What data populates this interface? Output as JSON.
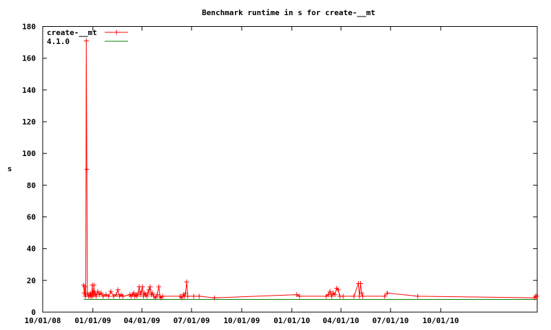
{
  "chart_data": {
    "type": "line",
    "title": "Benchmark runtime in s for create-__mt",
    "xlabel": "",
    "ylabel": "s",
    "xlim": [
      "2008-10-01",
      "2011-03-27"
    ],
    "ylim": [
      0,
      180
    ],
    "y_ticks": [
      0,
      20,
      40,
      60,
      80,
      100,
      120,
      140,
      160,
      180
    ],
    "x_ticks": [
      {
        "date": "2008-10-01",
        "label": "10/01/08"
      },
      {
        "date": "2009-01-01",
        "label": "01/01/09"
      },
      {
        "date": "2009-04-01",
        "label": "04/01/09"
      },
      {
        "date": "2009-07-01",
        "label": "07/01/09"
      },
      {
        "date": "2009-10-01",
        "label": "10/01/09"
      },
      {
        "date": "2010-01-01",
        "label": "01/01/10"
      },
      {
        "date": "2010-04-01",
        "label": "04/01/10"
      },
      {
        "date": "2010-07-01",
        "label": "07/01/10"
      },
      {
        "date": "2010-10-01",
        "label": "10/01/10"
      }
    ],
    "grid": false,
    "legend_position": "top-left",
    "series": [
      {
        "name": "create-__mt",
        "color": "#ff0000",
        "marker": "plus",
        "points": [
          {
            "x": "2008-12-15",
            "y": 17
          },
          {
            "x": "2008-12-16",
            "y": 12
          },
          {
            "x": "2008-12-17",
            "y": 16
          },
          {
            "x": "2008-12-18",
            "y": 10
          },
          {
            "x": "2008-12-19",
            "y": 11
          },
          {
            "x": "2008-12-20",
            "y": 171
          },
          {
            "x": "2008-12-21",
            "y": 90
          },
          {
            "x": "2008-12-22",
            "y": 12
          },
          {
            "x": "2008-12-24",
            "y": 10
          },
          {
            "x": "2008-12-26",
            "y": 11
          },
          {
            "x": "2008-12-27",
            "y": 10
          },
          {
            "x": "2008-12-28",
            "y": 12
          },
          {
            "x": "2008-12-29",
            "y": 10
          },
          {
            "x": "2008-12-30",
            "y": 11
          },
          {
            "x": "2008-12-31",
            "y": 17
          },
          {
            "x": "2009-01-01",
            "y": 10
          },
          {
            "x": "2009-01-02",
            "y": 12
          },
          {
            "x": "2009-01-03",
            "y": 17
          },
          {
            "x": "2009-01-04",
            "y": 11
          },
          {
            "x": "2009-01-05",
            "y": 12
          },
          {
            "x": "2009-01-07",
            "y": 10
          },
          {
            "x": "2009-01-10",
            "y": 13
          },
          {
            "x": "2009-01-13",
            "y": 11
          },
          {
            "x": "2009-01-16",
            "y": 12
          },
          {
            "x": "2009-01-20",
            "y": 10
          },
          {
            "x": "2009-01-25",
            "y": 11
          },
          {
            "x": "2009-01-30",
            "y": 10
          },
          {
            "x": "2009-02-03",
            "y": 13
          },
          {
            "x": "2009-02-08",
            "y": 10
          },
          {
            "x": "2009-02-13",
            "y": 11
          },
          {
            "x": "2009-02-16",
            "y": 14
          },
          {
            "x": "2009-02-19",
            "y": 10
          },
          {
            "x": "2009-02-22",
            "y": 11
          },
          {
            "x": "2009-02-25",
            "y": 10
          },
          {
            "x": "2009-03-10",
            "y": 11
          },
          {
            "x": "2009-03-12",
            "y": 10
          },
          {
            "x": "2009-03-15",
            "y": 11
          },
          {
            "x": "2009-03-17",
            "y": 12
          },
          {
            "x": "2009-03-19",
            "y": 10
          },
          {
            "x": "2009-03-21",
            "y": 11
          },
          {
            "x": "2009-03-23",
            "y": 10
          },
          {
            "x": "2009-03-25",
            "y": 12
          },
          {
            "x": "2009-03-27",
            "y": 16
          },
          {
            "x": "2009-03-29",
            "y": 11
          },
          {
            "x": "2009-03-31",
            "y": 13
          },
          {
            "x": "2009-04-02",
            "y": 16
          },
          {
            "x": "2009-04-04",
            "y": 10
          },
          {
            "x": "2009-04-06",
            "y": 12
          },
          {
            "x": "2009-04-08",
            "y": 11
          },
          {
            "x": "2009-04-10",
            "y": 10
          },
          {
            "x": "2009-04-12",
            "y": 12
          },
          {
            "x": "2009-04-14",
            "y": 14
          },
          {
            "x": "2009-04-16",
            "y": 16
          },
          {
            "x": "2009-04-18",
            "y": 11
          },
          {
            "x": "2009-04-20",
            "y": 12
          },
          {
            "x": "2009-04-23",
            "y": 10
          },
          {
            "x": "2009-04-26",
            "y": 9
          },
          {
            "x": "2009-04-29",
            "y": 11
          },
          {
            "x": "2009-05-02",
            "y": 16
          },
          {
            "x": "2009-05-04",
            "y": 10
          },
          {
            "x": "2009-05-06",
            "y": 9
          },
          {
            "x": "2009-05-09",
            "y": 10
          },
          {
            "x": "2009-06-10",
            "y": 10
          },
          {
            "x": "2009-06-13",
            "y": 9
          },
          {
            "x": "2009-06-16",
            "y": 11
          },
          {
            "x": "2009-06-18",
            "y": 10
          },
          {
            "x": "2009-06-20",
            "y": 12
          },
          {
            "x": "2009-06-22",
            "y": 19
          },
          {
            "x": "2009-06-24",
            "y": 10
          },
          {
            "x": "2009-07-05",
            "y": 10
          },
          {
            "x": "2009-07-15",
            "y": 10
          },
          {
            "x": "2009-08-12",
            "y": 9
          },
          {
            "x": "2010-01-10",
            "y": 11
          },
          {
            "x": "2010-01-15",
            "y": 10
          },
          {
            "x": "2010-03-05",
            "y": 10
          },
          {
            "x": "2010-03-09",
            "y": 11
          },
          {
            "x": "2010-03-12",
            "y": 13
          },
          {
            "x": "2010-03-15",
            "y": 10
          },
          {
            "x": "2010-03-18",
            "y": 12
          },
          {
            "x": "2010-03-21",
            "y": 11
          },
          {
            "x": "2010-03-24",
            "y": 15
          },
          {
            "x": "2010-03-27",
            "y": 14
          },
          {
            "x": "2010-03-30",
            "y": 10
          },
          {
            "x": "2010-04-05",
            "y": 10
          },
          {
            "x": "2010-04-25",
            "y": 10
          },
          {
            "x": "2010-05-03",
            "y": 18
          },
          {
            "x": "2010-05-05",
            "y": 10
          },
          {
            "x": "2010-05-07",
            "y": 18
          },
          {
            "x": "2010-05-09",
            "y": 12
          },
          {
            "x": "2010-05-11",
            "y": 10
          },
          {
            "x": "2010-06-20",
            "y": 10
          },
          {
            "x": "2010-06-25",
            "y": 12
          },
          {
            "x": "2010-08-20",
            "y": 10
          },
          {
            "x": "2011-03-22",
            "y": 9
          },
          {
            "x": "2011-03-24",
            "y": 10
          },
          {
            "x": "2011-03-26",
            "y": 10
          }
        ]
      },
      {
        "name": "4.1.0",
        "color": "#008000",
        "marker": "none",
        "points": [
          {
            "x": "2008-12-15",
            "y": 8
          },
          {
            "x": "2011-03-26",
            "y": 8
          }
        ]
      }
    ]
  }
}
